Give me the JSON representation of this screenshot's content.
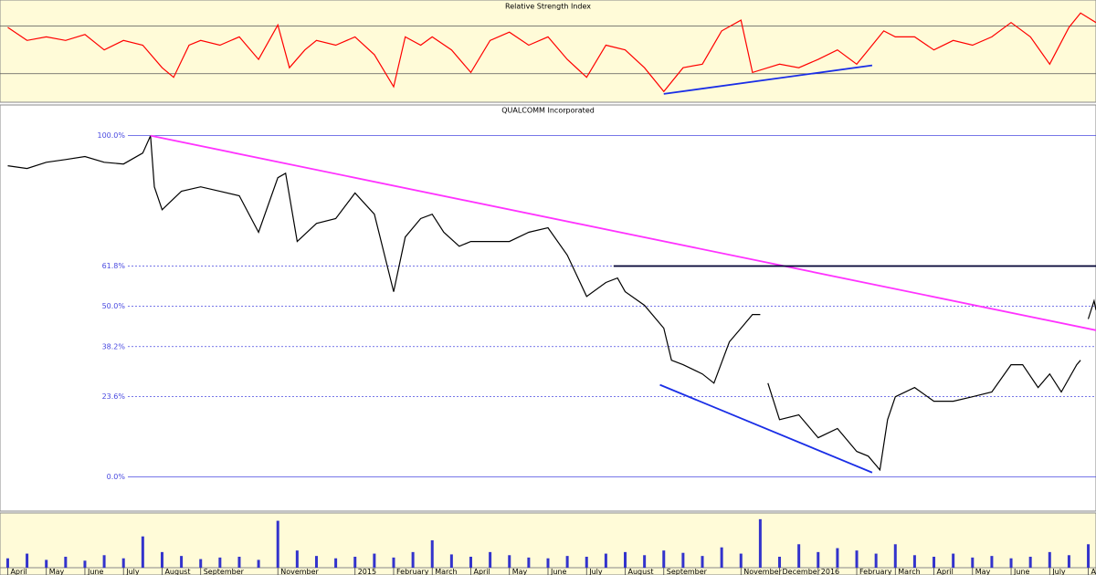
{
  "chart_data": [
    {
      "type": "line",
      "title": "Relative Strength Index",
      "x": [
        0,
        0.5,
        1,
        1.5,
        2,
        2.5,
        3,
        3.5,
        4,
        4.3,
        4.7,
        5,
        5.5,
        6,
        6.5,
        7,
        7.3,
        7.7,
        8,
        8.5,
        9,
        9.5,
        10,
        10.3,
        10.7,
        11,
        11.5,
        12,
        12.5,
        13,
        13.5,
        14,
        14.5,
        15,
        15.5,
        16,
        16.5,
        17,
        17.5,
        18,
        18.5,
        19,
        19.3,
        19.7,
        20,
        20.5,
        21,
        21.5,
        22,
        22.3,
        22.7,
        23,
        23.5,
        24,
        24.5,
        25,
        25.5,
        26,
        26.5,
        27,
        27.5,
        27.8,
        28.2
      ],
      "series": [
        {
          "color": "#ff0000",
          "values": [
            69,
            58,
            61,
            58,
            63,
            50,
            58,
            54,
            35,
            27,
            54,
            58,
            54,
            61,
            42,
            71,
            35,
            50,
            58,
            54,
            61,
            46,
            19,
            61,
            54,
            61,
            50,
            31,
            58,
            65,
            54,
            61,
            42,
            27,
            54,
            50,
            35,
            15,
            35,
            38,
            66,
            75,
            31,
            35,
            38,
            35,
            42,
            50,
            38,
            50,
            66,
            61,
            61,
            50,
            58,
            54,
            61,
            73,
            61,
            38,
            69,
            81,
            73
          ]
        }
      ],
      "xlim": [
        -0.2,
        28.2
      ],
      "ylim": [
        6,
        92
      ],
      "grid_levels": [
        30,
        70
      ],
      "trendlines": [
        {
          "color": "#1a2ee6",
          "x": [
            17,
            22.4
          ],
          "y": [
            13,
            37
          ]
        }
      ]
    },
    {
      "type": "line",
      "title": "QUALCOMM Incorporated",
      "x": [
        0,
        0.5,
        1,
        1.5,
        2,
        2.5,
        3,
        3.5,
        3.7,
        3.8,
        4,
        4.5,
        5,
        5.5,
        6,
        6.5,
        7,
        7.2,
        7.5,
        8,
        8.5,
        9,
        9.5,
        10,
        10.3,
        10.7,
        11,
        11.3,
        11.7,
        12,
        12.5,
        13,
        13.5,
        14,
        14.5,
        15,
        15.5,
        15.8,
        16,
        16.5,
        17,
        17.2,
        17.5,
        18,
        18.3,
        18.7,
        19,
        19.3,
        19.5,
        19.6,
        19.7,
        20,
        20.5,
        21,
        21.5,
        22,
        22.3,
        22.6,
        22.8,
        23,
        23.5,
        24,
        24.5,
        25,
        25.5,
        26,
        26.3,
        26.7,
        27,
        27.3,
        27.7,
        27.8,
        27.9,
        28,
        28.15,
        28.2
      ],
      "series": [
        {
          "color": "#000000",
          "values": [
            91.2,
            90.4,
            92.2,
            93,
            93.9,
            92.2,
            91.7,
            94.9,
            100,
            85,
            78.3,
            83.7,
            85,
            83.7,
            82.4,
            71.7,
            87.7,
            89,
            69,
            74.3,
            75.7,
            83.2,
            77,
            54.3,
            70.3,
            75.7,
            77,
            71.7,
            67.6,
            69,
            69,
            69,
            71.7,
            73,
            65,
            52.9,
            57,
            58.3,
            54.3,
            50.3,
            43.6,
            34.2,
            32.9,
            30.2,
            27.5,
            39.6,
            43.6,
            47.6,
            47.6,
            null,
            27.5,
            16.8,
            18.2,
            11.5,
            14.2,
            7.5,
            6.1,
            2.1,
            16.8,
            23.5,
            26.2,
            22.2,
            22.2,
            23.5,
            24.9,
            32.9,
            32.9,
            26.2,
            30.2,
            24.9,
            32.9,
            34.2,
            null,
            46.3,
            51.6,
            48.9
          ]
        }
      ],
      "xlim": [
        -0.2,
        28.2
      ],
      "ylim": [
        -10,
        109
      ],
      "yticks": [
        {
          "value": 100,
          "label": "100.0%"
        },
        {
          "value": 61.8,
          "label": "61.8%"
        },
        {
          "value": 50,
          "label": "50.0%"
        },
        {
          "value": 38.2,
          "label": "38.2%"
        },
        {
          "value": 23.6,
          "label": "23.6%"
        },
        {
          "value": 0,
          "label": "0.0%"
        }
      ],
      "grid_color": "#4a4ae0",
      "trendlines": [
        {
          "color": "#ff33ff",
          "x": [
            3.7,
            28.2
          ],
          "y": [
            100,
            43
          ]
        },
        {
          "color": "#1a2ee6",
          "x": [
            16.9,
            22.4
          ],
          "y": [
            27,
            1.3
          ]
        },
        {
          "color": "#000033",
          "x": [
            15.7,
            28.2
          ],
          "y": [
            61.8,
            61.8
          ]
        }
      ]
    },
    {
      "type": "bar",
      "color": "#3333cc",
      "x": [
        0,
        0.5,
        1,
        1.5,
        2,
        2.5,
        3,
        3.5,
        4,
        4.5,
        5,
        5.5,
        6,
        6.5,
        7,
        7.5,
        8,
        8.5,
        9,
        9.5,
        10,
        10.5,
        11,
        11.5,
        12,
        12.5,
        13,
        13.5,
        14,
        14.5,
        15,
        15.5,
        16,
        16.5,
        17,
        17.5,
        18,
        18.5,
        19,
        19.5,
        20,
        20.5,
        21,
        21.5,
        22,
        22.5,
        23,
        23.5,
        24,
        24.5,
        25,
        25.5,
        26,
        26.5,
        27,
        27.5,
        28
      ],
      "values": [
        12,
        18,
        10,
        14,
        9,
        16,
        12,
        40,
        20,
        15,
        11,
        13,
        14,
        10,
        60,
        22,
        15,
        12,
        14,
        18,
        13,
        20,
        35,
        17,
        14,
        20,
        16,
        13,
        12,
        15,
        14,
        18,
        20,
        16,
        22,
        19,
        15,
        26,
        18,
        62,
        14,
        30,
        20,
        25,
        22,
        18,
        30,
        16,
        14,
        18,
        13,
        15,
        12,
        14,
        20,
        16,
        30
      ],
      "xlim": [
        -0.2,
        28.2
      ],
      "ylim": [
        0,
        70
      ],
      "xticks": [
        {
          "value": 0,
          "label": "April"
        },
        {
          "value": 1,
          "label": "May"
        },
        {
          "value": 2,
          "label": "June"
        },
        {
          "value": 3,
          "label": "July"
        },
        {
          "value": 4,
          "label": "August"
        },
        {
          "value": 5,
          "label": "September"
        },
        {
          "value": 7,
          "label": "November"
        },
        {
          "value": 9,
          "label": "2015"
        },
        {
          "value": 10,
          "label": "February"
        },
        {
          "value": 11,
          "label": "March"
        },
        {
          "value": 12,
          "label": "April"
        },
        {
          "value": 13,
          "label": "May"
        },
        {
          "value": 14,
          "label": "June"
        },
        {
          "value": 15,
          "label": "July"
        },
        {
          "value": 16,
          "label": "August"
        },
        {
          "value": 17,
          "label": "September"
        },
        {
          "value": 19,
          "label": "November"
        },
        {
          "value": 20,
          "label": "December"
        },
        {
          "value": 21,
          "label": "2016"
        },
        {
          "value": 22,
          "label": "February"
        },
        {
          "value": 23,
          "label": "March"
        },
        {
          "value": 24,
          "label": "April"
        },
        {
          "value": 25,
          "label": "May"
        },
        {
          "value": 26,
          "label": "June"
        },
        {
          "value": 27,
          "label": "July"
        },
        {
          "value": 28,
          "label": "Au"
        }
      ]
    }
  ]
}
